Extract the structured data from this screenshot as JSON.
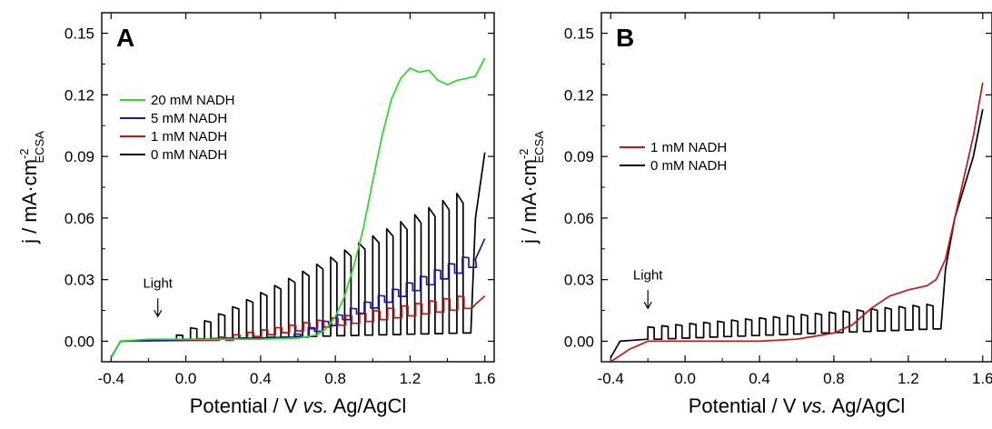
{
  "chart_data": [
    {
      "type": "line",
      "panel": "A",
      "xlabel_parts": [
        "Potential / V ",
        "vs.",
        " Ag/AgCl"
      ],
      "ylabel_parts": [
        "j / mA·cm",
        "-2",
        "ECSA"
      ],
      "xlim": [
        -0.45,
        1.65
      ],
      "ylim": [
        -0.01,
        0.16
      ],
      "xticks": [
        "-0.4",
        "0.0",
        "0.4",
        "0.8",
        "1.2",
        "1.6"
      ],
      "yticks": [
        "0.00",
        "0.03",
        "0.06",
        "0.09",
        "0.12",
        "0.15"
      ],
      "legend_position": "upper-left",
      "annotation": {
        "text": "Light",
        "x": -0.15,
        "y": 0.012
      },
      "series": [
        {
          "name": "20 mM NADH",
          "color": "#22dd22",
          "kind": "smooth",
          "points": [
            [
              -0.4,
              -0.008
            ],
            [
              -0.35,
              0.0
            ],
            [
              -0.2,
              0.001
            ],
            [
              0.0,
              0.001
            ],
            [
              0.2,
              0.001
            ],
            [
              0.4,
              0.001
            ],
            [
              0.6,
              0.0015
            ],
            [
              0.7,
              0.003
            ],
            [
              0.75,
              0.006
            ],
            [
              0.8,
              0.012
            ],
            [
              0.85,
              0.022
            ],
            [
              0.9,
              0.037
            ],
            [
              0.95,
              0.055
            ],
            [
              1.0,
              0.078
            ],
            [
              1.05,
              0.1
            ],
            [
              1.1,
              0.118
            ],
            [
              1.15,
              0.128
            ],
            [
              1.2,
              0.133
            ],
            [
              1.25,
              0.131
            ],
            [
              1.3,
              0.132
            ],
            [
              1.35,
              0.127
            ],
            [
              1.4,
              0.125
            ],
            [
              1.45,
              0.127
            ],
            [
              1.5,
              0.128
            ],
            [
              1.55,
              0.129
            ],
            [
              1.6,
              0.138
            ]
          ]
        },
        {
          "name": "5 mM NADH",
          "color": "#1a1aaa",
          "kind": "step",
          "x0": 0.58,
          "x1": 1.55,
          "period": 0.075,
          "base": [
            0.002,
            0.036
          ],
          "amp": [
            0.0015,
            0.005
          ],
          "tail": [
            [
              1.55,
              0.04
            ],
            [
              1.6,
              0.05
            ]
          ]
        },
        {
          "name": "1 mM NADH",
          "color": "#cc1111",
          "kind": "step",
          "x0": 0.18,
          "x1": 1.55,
          "period": 0.075,
          "base": [
            0.0005,
            0.016
          ],
          "amp": [
            0.0015,
            0.006
          ],
          "tail": [
            [
              1.55,
              0.018
            ],
            [
              1.6,
              0.022
            ]
          ]
        },
        {
          "name": "0 mM NADH",
          "color": "#000000",
          "kind": "step",
          "x0": -0.05,
          "x1": 1.55,
          "period": 0.075,
          "base": [
            0.001,
            0.004
          ],
          "amp": [
            0.002,
            0.068
          ],
          "tail": [
            [
              1.55,
              0.06
            ],
            [
              1.6,
              0.092
            ]
          ]
        }
      ]
    },
    {
      "type": "line",
      "panel": "B",
      "xlabel_parts": [
        "Potential / V ",
        "vs.",
        " Ag/AgCl"
      ],
      "ylabel_parts": [
        "j / mA·cm",
        "-2",
        "ECSA"
      ],
      "xlim": [
        -0.45,
        1.65
      ],
      "ylim": [
        -0.01,
        0.16
      ],
      "xticks": [
        "-0.4",
        "0.0",
        "0.4",
        "0.8",
        "1.2",
        "1.6"
      ],
      "yticks": [
        "0.00",
        "0.03",
        "0.06",
        "0.09",
        "0.12",
        "0.15"
      ],
      "legend_position": "upper-left",
      "annotation": {
        "text": "Light",
        "x": -0.2,
        "y": 0.016
      },
      "series": [
        {
          "name": "1 mM NADH",
          "color": "#cc1111",
          "kind": "smooth",
          "points": [
            [
              -0.4,
              -0.01
            ],
            [
              -0.3,
              -0.004
            ],
            [
              -0.2,
              0.0
            ],
            [
              0.0,
              0.0
            ],
            [
              0.2,
              0.0
            ],
            [
              0.4,
              0.0
            ],
            [
              0.6,
              0.001
            ],
            [
              0.8,
              0.004
            ],
            [
              0.9,
              0.008
            ],
            [
              1.0,
              0.016
            ],
            [
              1.1,
              0.022
            ],
            [
              1.2,
              0.025
            ],
            [
              1.3,
              0.027
            ],
            [
              1.35,
              0.03
            ],
            [
              1.4,
              0.04
            ],
            [
              1.45,
              0.06
            ],
            [
              1.5,
              0.08
            ],
            [
              1.55,
              0.1
            ],
            [
              1.6,
              0.126
            ]
          ]
        },
        {
          "name": "0 mM NADH",
          "color": "#000000",
          "kind": "step",
          "x0": -0.2,
          "x1": 1.4,
          "period": 0.075,
          "base": [
            0.001,
            0.006
          ],
          "amp": [
            0.006,
            0.012
          ],
          "tail": [
            [
              1.4,
              0.035
            ],
            [
              1.45,
              0.06
            ],
            [
              1.5,
              0.075
            ],
            [
              1.55,
              0.09
            ],
            [
              1.6,
              0.113
            ]
          ]
        }
      ]
    }
  ]
}
